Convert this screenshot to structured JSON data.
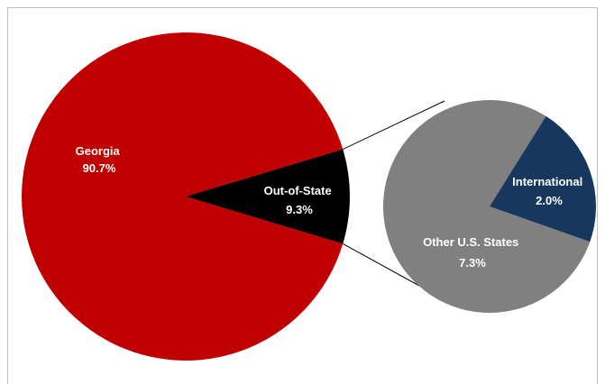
{
  "chart_data": [
    {
      "type": "pie",
      "name": "main",
      "slices": [
        {
          "label": "Georgia",
          "value": 90.7,
          "value_label": "90.7%",
          "color": "#c00000"
        },
        {
          "label": "Out-of-State",
          "value": 9.3,
          "value_label": "9.3%",
          "color": "#000000"
        }
      ]
    },
    {
      "type": "pie",
      "name": "breakout",
      "breakout_of": "Out-of-State",
      "slices": [
        {
          "label": "Other U.S. States",
          "value": 7.3,
          "value_label": "7.3%",
          "color": "#808080"
        },
        {
          "label": "International",
          "value": 2.0,
          "value_label": "2.0%",
          "color": "#17375e"
        }
      ]
    }
  ],
  "colors": {
    "connector": "#000000",
    "label_text": "#ffffff",
    "frame_border": "#bfbfbf"
  }
}
